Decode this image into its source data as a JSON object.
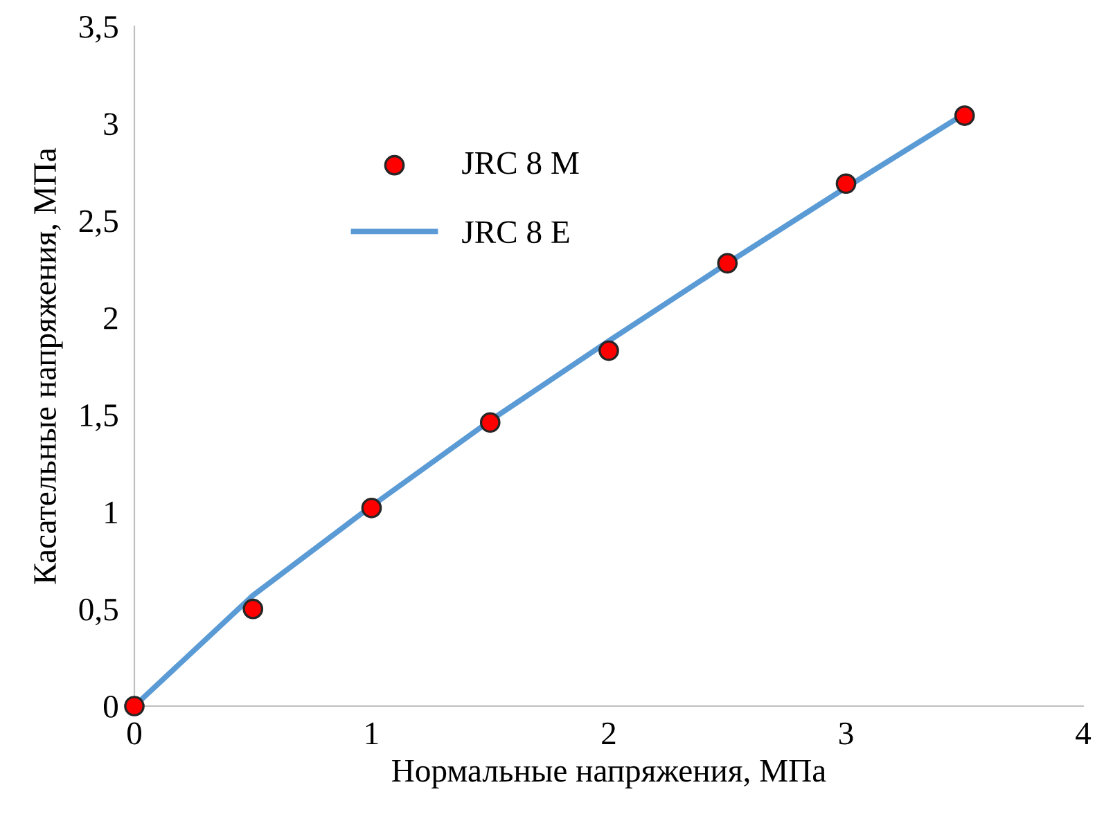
{
  "chart_data": {
    "type": "scatter",
    "xlabel": "Нормальные напряжения, МПа",
    "ylabel": "Касательные напряжения, МПа",
    "x": [
      0,
      0.5,
      1,
      1.5,
      2,
      2.5,
      3,
      3.5
    ],
    "series": [
      {
        "name": "JRC 8 M",
        "color": "#ff0000",
        "marker": "circle",
        "values": [
          0,
          0.5,
          1.02,
          1.46,
          1.83,
          2.28,
          2.69,
          3.04
        ]
      },
      {
        "name": "JRC 8 E",
        "type": "line",
        "color": "#5b9bd5",
        "marker": "none",
        "line_style": "solid",
        "values": [
          0,
          0.57,
          1.03,
          1.47,
          1.88,
          2.28,
          2.67,
          3.05
        ]
      }
    ],
    "xlim": [
      0,
      4
    ],
    "ylim": [
      0,
      3.5
    ],
    "xticks": [
      0,
      1,
      2,
      3,
      4
    ],
    "yticks": [
      0,
      {
        "value": 0.5,
        "label": "0,5"
      },
      1,
      {
        "value": 1.5,
        "label": "1,5"
      },
      2,
      {
        "value": 2.5,
        "label": "2,5"
      },
      3,
      {
        "value": 3.5,
        "label": "3,5"
      }
    ],
    "grid": false,
    "legend": "top left"
  }
}
